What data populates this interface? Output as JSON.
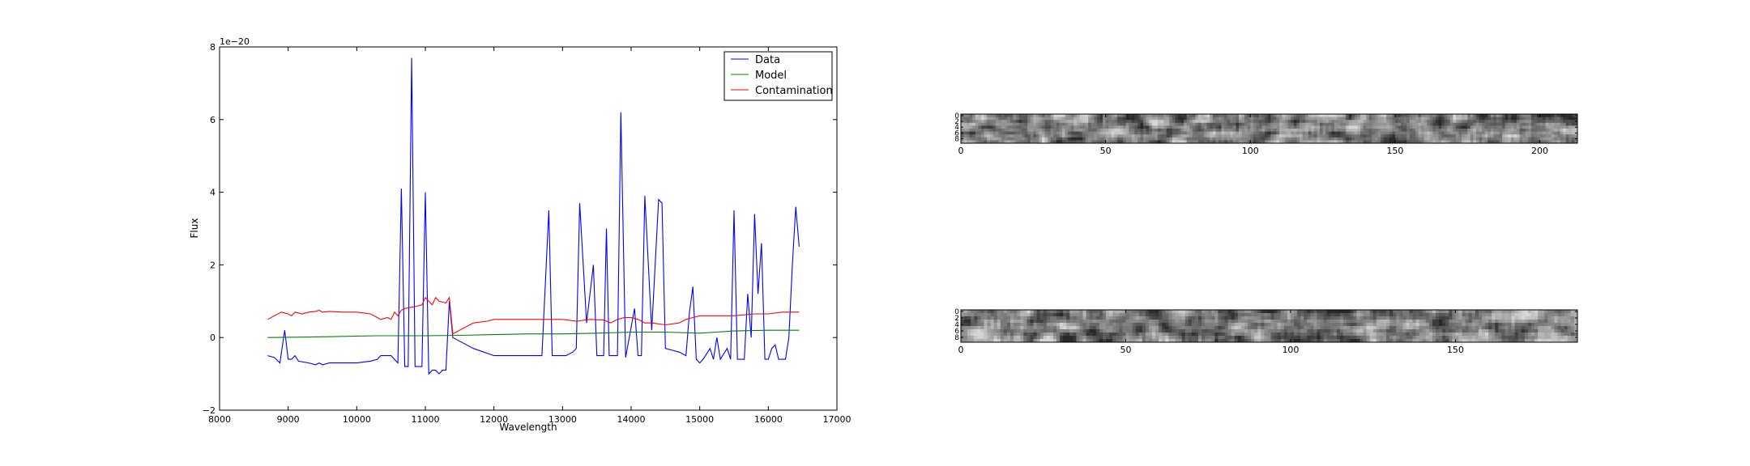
{
  "figure": {
    "background": "#ffffff"
  },
  "chart_data": [
    {
      "type": "line",
      "title": "",
      "xlabel": "Wavelength",
      "ylabel": "Flux",
      "offset_text": "1e−20",
      "xlim": [
        8000,
        17000
      ],
      "ylim": [
        -2,
        8
      ],
      "xticks": [
        8000,
        9000,
        10000,
        11000,
        12000,
        13000,
        14000,
        15000,
        16000,
        17000
      ],
      "yticks": [
        -2,
        0,
        2,
        4,
        6,
        8
      ],
      "grid": false,
      "legend_position": "top-right",
      "series": [
        {
          "name": "Data",
          "color": "#0000ff",
          "points": [
            [
              8700,
              -0.5
            ],
            [
              8800,
              -0.55
            ],
            [
              8880,
              -0.7
            ],
            [
              8950,
              0.2
            ],
            [
              9000,
              -0.6
            ],
            [
              9050,
              -0.6
            ],
            [
              9100,
              -0.5
            ],
            [
              9150,
              -0.65
            ],
            [
              9300,
              -0.7
            ],
            [
              9400,
              -0.75
            ],
            [
              9450,
              -0.7
            ],
            [
              9500,
              -0.75
            ],
            [
              9600,
              -0.7
            ],
            [
              9800,
              -0.7
            ],
            [
              10000,
              -0.7
            ],
            [
              10200,
              -0.65
            ],
            [
              10300,
              -0.6
            ],
            [
              10350,
              -0.5
            ],
            [
              10450,
              -0.5
            ],
            [
              10500,
              -0.5
            ],
            [
              10550,
              -0.6
            ],
            [
              10600,
              -0.7
            ],
            [
              10650,
              4.1
            ],
            [
              10700,
              -0.8
            ],
            [
              10750,
              -0.8
            ],
            [
              10800,
              7.7
            ],
            [
              10850,
              -0.8
            ],
            [
              10950,
              -0.8
            ],
            [
              11000,
              4.0
            ],
            [
              11050,
              -1.0
            ],
            [
              11100,
              -0.9
            ],
            [
              11150,
              -0.9
            ],
            [
              11200,
              -1.0
            ],
            [
              11250,
              -0.9
            ],
            [
              11300,
              -0.9
            ],
            [
              11350,
              1.0
            ],
            [
              11400,
              0.0
            ],
            [
              11500,
              -0.1
            ],
            [
              11700,
              -0.3
            ],
            [
              12000,
              -0.5
            ],
            [
              12200,
              -0.5
            ],
            [
              12500,
              -0.5
            ],
            [
              12700,
              -0.5
            ],
            [
              12800,
              3.5
            ],
            [
              12850,
              -0.5
            ],
            [
              13050,
              -0.5
            ],
            [
              13150,
              -0.4
            ],
            [
              13200,
              -0.3
            ],
            [
              13250,
              3.7
            ],
            [
              13350,
              0.4
            ],
            [
              13450,
              2.0
            ],
            [
              13500,
              -0.5
            ],
            [
              13600,
              -0.5
            ],
            [
              13640,
              3.0
            ],
            [
              13680,
              -0.5
            ],
            [
              13800,
              -0.5
            ],
            [
              13850,
              6.2
            ],
            [
              13920,
              -0.55
            ],
            [
              14050,
              0.8
            ],
            [
              14100,
              -0.5
            ],
            [
              14150,
              -0.5
            ],
            [
              14200,
              3.9
            ],
            [
              14300,
              0.2
            ],
            [
              14400,
              3.8
            ],
            [
              14450,
              3.7
            ],
            [
              14500,
              -0.3
            ],
            [
              14600,
              -0.35
            ],
            [
              14700,
              -0.4
            ],
            [
              14800,
              -0.5
            ],
            [
              14850,
              0.7
            ],
            [
              14900,
              1.4
            ],
            [
              14950,
              -0.6
            ],
            [
              15000,
              -0.7
            ],
            [
              15050,
              -0.6
            ],
            [
              15150,
              -0.3
            ],
            [
              15200,
              -0.6
            ],
            [
              15250,
              0.0
            ],
            [
              15300,
              -0.6
            ],
            [
              15400,
              -0.3
            ],
            [
              15450,
              -0.6
            ],
            [
              15500,
              3.5
            ],
            [
              15550,
              -0.6
            ],
            [
              15600,
              -0.6
            ],
            [
              15650,
              -0.6
            ],
            [
              15700,
              1.2
            ],
            [
              15750,
              0.0
            ],
            [
              15800,
              3.4
            ],
            [
              15850,
              1.2
            ],
            [
              15900,
              2.6
            ],
            [
              15950,
              -0.6
            ],
            [
              16000,
              -0.6
            ],
            [
              16050,
              -0.3
            ],
            [
              16100,
              -0.2
            ],
            [
              16150,
              -0.6
            ],
            [
              16250,
              -0.6
            ],
            [
              16300,
              0.0
            ],
            [
              16350,
              2.0
            ],
            [
              16400,
              3.6
            ],
            [
              16450,
              2.5
            ]
          ]
        },
        {
          "name": "Model",
          "color": "#008000",
          "points": [
            [
              8700,
              0.0
            ],
            [
              9500,
              0.02
            ],
            [
              10300,
              0.05
            ],
            [
              11000,
              0.05
            ],
            [
              11500,
              0.06
            ],
            [
              12000,
              0.08
            ],
            [
              12500,
              0.1
            ],
            [
              13000,
              0.1
            ],
            [
              13500,
              0.12
            ],
            [
              14000,
              0.15
            ],
            [
              14500,
              0.15
            ],
            [
              15000,
              0.12
            ],
            [
              15500,
              0.18
            ],
            [
              16000,
              0.2
            ],
            [
              16450,
              0.2
            ]
          ]
        },
        {
          "name": "Contamination",
          "color": "#ff0000",
          "points": [
            [
              8700,
              0.5
            ],
            [
              8800,
              0.6
            ],
            [
              8900,
              0.7
            ],
            [
              9000,
              0.65
            ],
            [
              9050,
              0.6
            ],
            [
              9100,
              0.7
            ],
            [
              9200,
              0.65
            ],
            [
              9300,
              0.7
            ],
            [
              9400,
              0.72
            ],
            [
              9450,
              0.75
            ],
            [
              9500,
              0.7
            ],
            [
              9600,
              0.72
            ],
            [
              9800,
              0.7
            ],
            [
              10000,
              0.7
            ],
            [
              10200,
              0.65
            ],
            [
              10300,
              0.55
            ],
            [
              10350,
              0.5
            ],
            [
              10450,
              0.55
            ],
            [
              10500,
              0.5
            ],
            [
              10550,
              0.7
            ],
            [
              10600,
              0.6
            ],
            [
              10650,
              0.75
            ],
            [
              10700,
              0.8
            ],
            [
              10850,
              0.85
            ],
            [
              10950,
              0.9
            ],
            [
              11000,
              1.1
            ],
            [
              11050,
              1.0
            ],
            [
              11100,
              0.9
            ],
            [
              11150,
              1.1
            ],
            [
              11200,
              1.0
            ],
            [
              11300,
              0.95
            ],
            [
              11350,
              1.1
            ],
            [
              11400,
              0.1
            ],
            [
              11500,
              0.2
            ],
            [
              11700,
              0.4
            ],
            [
              11900,
              0.45
            ],
            [
              12000,
              0.5
            ],
            [
              12200,
              0.5
            ],
            [
              12500,
              0.5
            ],
            [
              12800,
              0.5
            ],
            [
              13000,
              0.5
            ],
            [
              13200,
              0.45
            ],
            [
              13400,
              0.5
            ],
            [
              13600,
              0.48
            ],
            [
              13700,
              0.4
            ],
            [
              13800,
              0.5
            ],
            [
              13900,
              0.55
            ],
            [
              14000,
              0.55
            ],
            [
              14100,
              0.5
            ],
            [
              14200,
              0.4
            ],
            [
              14300,
              0.4
            ],
            [
              14500,
              0.35
            ],
            [
              14700,
              0.4
            ],
            [
              14800,
              0.5
            ],
            [
              14900,
              0.55
            ],
            [
              15000,
              0.6
            ],
            [
              15200,
              0.6
            ],
            [
              15500,
              0.6
            ],
            [
              15800,
              0.65
            ],
            [
              16000,
              0.65
            ],
            [
              16200,
              0.7
            ],
            [
              16450,
              0.7
            ]
          ]
        }
      ]
    },
    {
      "type": "heatmap",
      "title": "",
      "colormap": "gray",
      "xlim": [
        0,
        213
      ],
      "ylim": [
        10,
        0
      ],
      "xticks": [
        0,
        50,
        100,
        150,
        200
      ],
      "yticks": [
        0,
        2,
        4,
        6,
        8
      ],
      "columns": 213,
      "rows": 10,
      "noise_seed": 7
    },
    {
      "type": "heatmap",
      "title": "",
      "colormap": "gray",
      "xlim": [
        0,
        187
      ],
      "ylim": [
        10,
        0
      ],
      "xticks": [
        0,
        50,
        100,
        150
      ],
      "yticks": [
        0,
        2,
        4,
        6,
        8
      ],
      "columns": 187,
      "rows": 10,
      "noise_seed": 13
    }
  ]
}
